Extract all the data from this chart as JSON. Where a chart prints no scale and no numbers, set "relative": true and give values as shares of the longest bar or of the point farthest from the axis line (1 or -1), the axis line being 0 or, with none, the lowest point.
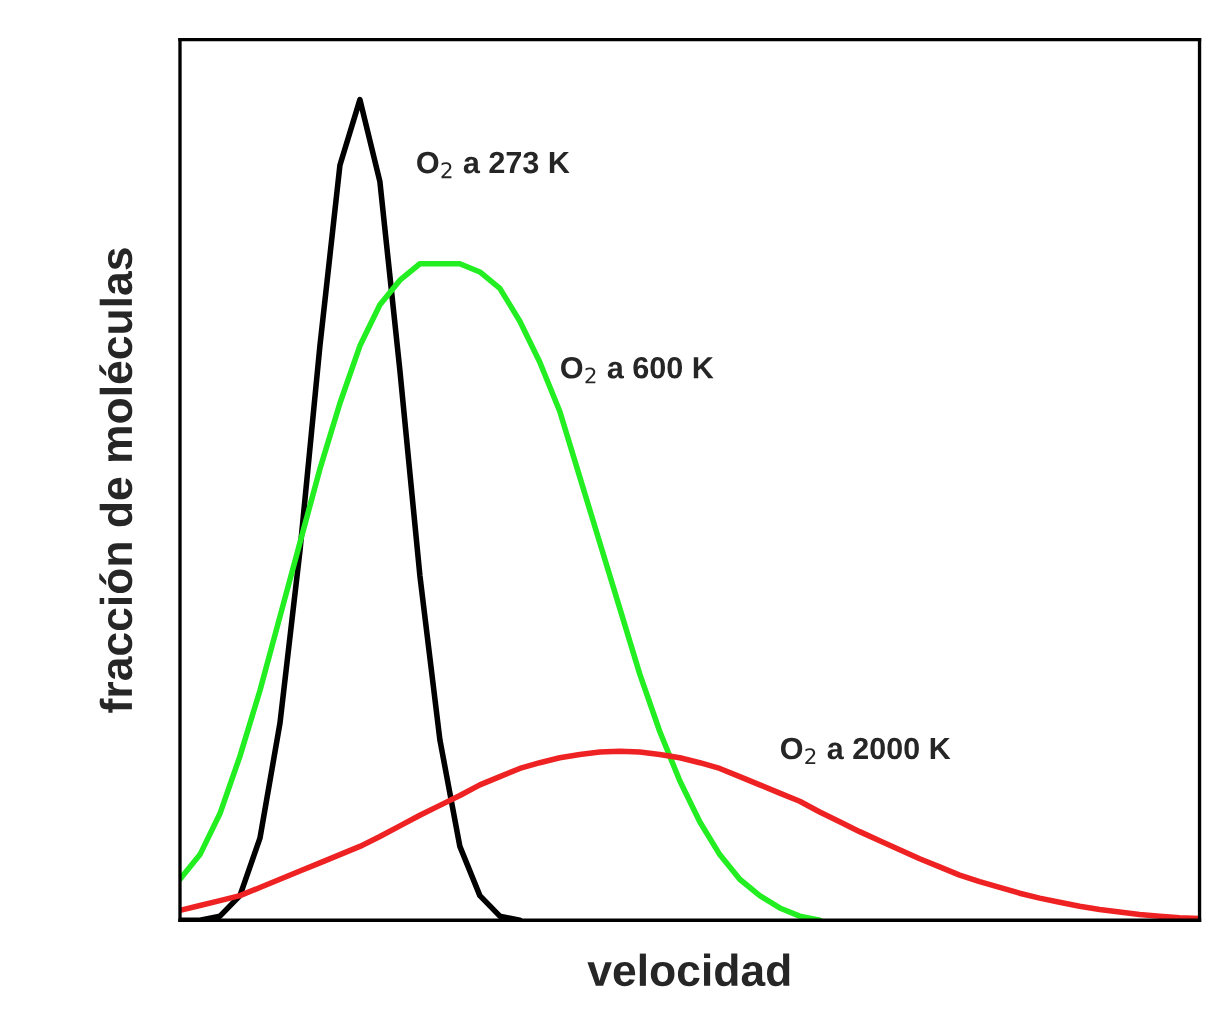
{
  "chart_data": {
    "type": "line",
    "relative": true,
    "xlabel": "velocidad",
    "ylabel": "fracción de moléculas",
    "legend": false,
    "marker": "none",
    "line_style": "solid",
    "categories": [
      null,
      null,
      null,
      null,
      null,
      null,
      null,
      null,
      null,
      null,
      null,
      null,
      null,
      null,
      null,
      null,
      null,
      null,
      null,
      null,
      null,
      null,
      null,
      null,
      null,
      null,
      null,
      null,
      null,
      null,
      null,
      null,
      null,
      null,
      null,
      null,
      null,
      null,
      null,
      null,
      null,
      null,
      null,
      null,
      null,
      null,
      null,
      null,
      null,
      null,
      null,
      null
    ],
    "series": [
      {
        "name": "O$_{2}$ a 273 K",
        "color": "#000000",
        "values": [
          0,
          0,
          0.005,
          0.03,
          0.1,
          0.24,
          0.45,
          0.7,
          0.92,
          1.0,
          0.9,
          0.67,
          0.42,
          0.22,
          0.09,
          0.03,
          0.005,
          0,
          null,
          null,
          null,
          null,
          null,
          null,
          null,
          null,
          null,
          null,
          null,
          null,
          null,
          null,
          null,
          null,
          null,
          null,
          null,
          null,
          null,
          null,
          null,
          null,
          null,
          null,
          null,
          null,
          null,
          null,
          null,
          null,
          null,
          null
        ]
      },
      {
        "name": "O$_{2}$ a 600 K",
        "color": "#22ee22",
        "values": [
          0.05,
          0.08,
          0.13,
          0.2,
          0.28,
          0.37,
          0.46,
          0.55,
          0.63,
          0.7,
          0.75,
          0.78,
          0.8,
          0.8,
          0.8,
          0.79,
          0.77,
          0.73,
          0.68,
          0.62,
          0.54,
          0.46,
          0.38,
          0.3,
          0.23,
          0.17,
          0.12,
          0.08,
          0.05,
          0.03,
          0.015,
          0.005,
          0,
          null,
          null,
          null,
          null,
          null,
          null,
          null,
          null,
          null,
          null,
          null,
          null,
          null,
          null,
          null,
          null,
          null,
          null,
          null
        ]
      },
      {
        "name": "O$_{2}$ a 2000 K",
        "color": "#ee2222",
        "values": [
          0.012,
          0.018,
          0.024,
          0.03,
          0.04,
          0.05,
          0.06,
          0.07,
          0.08,
          0.09,
          0.102,
          0.115,
          0.128,
          0.14,
          0.152,
          0.165,
          0.175,
          0.185,
          0.192,
          0.198,
          0.202,
          0.205,
          0.206,
          0.205,
          0.202,
          0.198,
          0.192,
          0.185,
          0.175,
          0.165,
          0.155,
          0.145,
          0.132,
          0.12,
          0.108,
          0.097,
          0.086,
          0.075,
          0.065,
          0.055,
          0.047,
          0.04,
          0.033,
          0.027,
          0.022,
          0.017,
          0.013,
          0.01,
          0.007,
          0.005,
          0.003,
          0.002
        ]
      }
    ]
  }
}
